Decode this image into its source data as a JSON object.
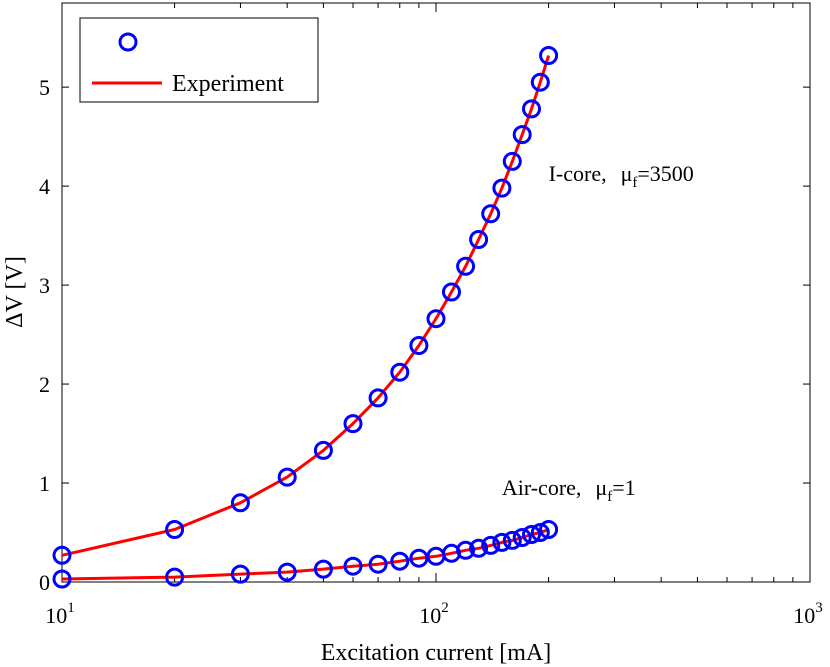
{
  "chart_data": {
    "type": "scatter",
    "xlabel": "Excitation current [mA]",
    "ylabel": "ΔV [V]",
    "xscale": "log",
    "xlim": [
      10,
      1000
    ],
    "ylim": [
      0,
      5.85
    ],
    "x_ticks": [
      {
        "value": 10,
        "base": "10",
        "exp": "1"
      },
      {
        "value": 100,
        "base": "10",
        "exp": "2"
      },
      {
        "value": 1000,
        "base": "10",
        "exp": "3"
      }
    ],
    "y_ticks": [
      0,
      1,
      2,
      3,
      4,
      5
    ],
    "legend": {
      "placement": "top-left",
      "entries": [
        {
          "label": "",
          "marker": "circle",
          "color": "#0000ff"
        },
        {
          "label": "Experiment",
          "marker": "line",
          "color": "#ff0000"
        }
      ]
    },
    "series": [
      {
        "marker": "circle",
        "color": "#0000ff",
        "x": [
          10,
          20,
          30,
          40,
          50,
          60,
          70,
          80,
          90,
          100,
          110,
          120,
          130,
          140,
          150,
          160,
          170,
          180,
          190,
          200
        ],
        "y": [
          0.27,
          0.53,
          0.8,
          1.06,
          1.33,
          1.6,
          1.86,
          2.12,
          2.39,
          2.66,
          2.93,
          3.19,
          3.46,
          3.72,
          3.98,
          4.25,
          4.52,
          4.78,
          5.05,
          5.32
        ]
      },
      {
        "line": true,
        "color": "#ff0000",
        "x": [
          10,
          20,
          30,
          40,
          50,
          60,
          70,
          80,
          90,
          100,
          110,
          120,
          130,
          140,
          150,
          160,
          170,
          180,
          190,
          200
        ],
        "y": [
          0.27,
          0.53,
          0.8,
          1.06,
          1.33,
          1.6,
          1.86,
          2.12,
          2.39,
          2.66,
          2.93,
          3.19,
          3.46,
          3.72,
          3.98,
          4.25,
          4.52,
          4.78,
          5.05,
          5.32
        ]
      },
      {
        "marker": "circle",
        "color": "#0000ff",
        "x": [
          10,
          20,
          30,
          40,
          50,
          60,
          70,
          80,
          90,
          100,
          110,
          120,
          130,
          140,
          150,
          160,
          170,
          180,
          190,
          200
        ],
        "y": [
          0.03,
          0.05,
          0.08,
          0.1,
          0.13,
          0.16,
          0.18,
          0.21,
          0.24,
          0.26,
          0.29,
          0.32,
          0.34,
          0.37,
          0.4,
          0.42,
          0.45,
          0.48,
          0.5,
          0.53
        ]
      },
      {
        "line": true,
        "color": "#ff0000",
        "x": [
          10,
          20,
          30,
          40,
          50,
          60,
          70,
          80,
          90,
          100,
          110,
          120,
          130,
          140,
          150,
          160,
          170,
          180,
          190,
          200
        ],
        "y": [
          0.03,
          0.05,
          0.08,
          0.1,
          0.13,
          0.16,
          0.18,
          0.21,
          0.24,
          0.26,
          0.29,
          0.32,
          0.34,
          0.37,
          0.4,
          0.42,
          0.45,
          0.48,
          0.5,
          0.53
        ]
      }
    ],
    "annotations": [
      {
        "id": "icore",
        "label": "I-core,",
        "mu": "μ",
        "sub": "f",
        "suffix": "=3500",
        "at": [
          200,
          4.05
        ]
      },
      {
        "id": "aircore",
        "label": "Air-core,",
        "mu": "μ",
        "sub": "f",
        "suffix": "=1",
        "at": [
          150,
          0.88
        ]
      }
    ],
    "grid": false
  }
}
